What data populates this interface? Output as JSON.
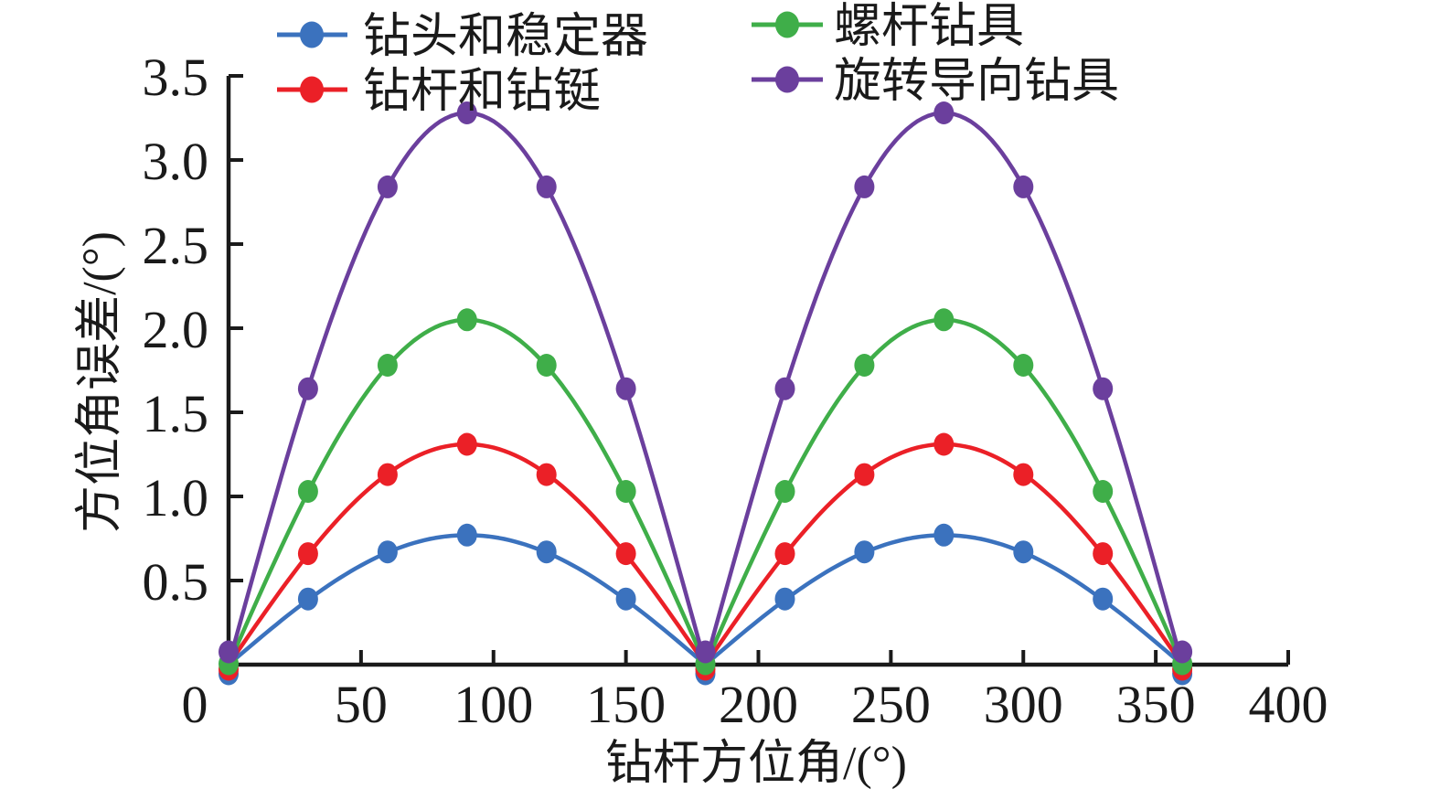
{
  "figure": {
    "background": "#ffffff",
    "axis_color": "#1a1a1a"
  },
  "chart_data": {
    "type": "line",
    "title": "",
    "xlabel": "钻杆方位角/(°)",
    "ylabel": "方位角误差/(°)",
    "xlim": [
      0,
      400
    ],
    "ylim": [
      0,
      3.5
    ],
    "xticks": [
      0,
      50,
      100,
      150,
      200,
      250,
      300,
      350,
      400
    ],
    "yticks": [
      0.5,
      1.0,
      1.5,
      2.0,
      2.5,
      3.0,
      3.5
    ],
    "grid": false,
    "legend_position": "top",
    "marker": "ellipse",
    "x": [
      0,
      30,
      60,
      90,
      120,
      150,
      180,
      210,
      240,
      270,
      300,
      330,
      360
    ],
    "series": [
      {
        "name": "钻头和稳定器",
        "color": "#3B72BE",
        "amplitude": 0.77,
        "values": [
          0,
          0.39,
          0.67,
          0.77,
          0.67,
          0.39,
          0,
          0.39,
          0.67,
          0.77,
          0.67,
          0.39,
          0
        ]
      },
      {
        "name": "钻杆和钻铤",
        "color": "#EB2027",
        "amplitude": 1.31,
        "values": [
          0,
          0.66,
          1.13,
          1.31,
          1.13,
          0.66,
          0,
          0.66,
          1.13,
          1.31,
          1.13,
          0.66,
          0
        ]
      },
      {
        "name": "螺杆钻具",
        "color": "#3FAE49",
        "amplitude": 2.05,
        "values": [
          0,
          1.03,
          1.78,
          2.05,
          1.78,
          1.03,
          0,
          1.03,
          1.78,
          2.05,
          1.78,
          1.03,
          0
        ]
      },
      {
        "name": "旋转导向钻具",
        "color": "#6B3F9D",
        "amplitude": 3.28,
        "values": [
          0,
          1.64,
          2.84,
          3.28,
          2.84,
          1.64,
          0,
          1.64,
          2.84,
          3.28,
          2.84,
          1.64,
          0
        ]
      }
    ]
  }
}
